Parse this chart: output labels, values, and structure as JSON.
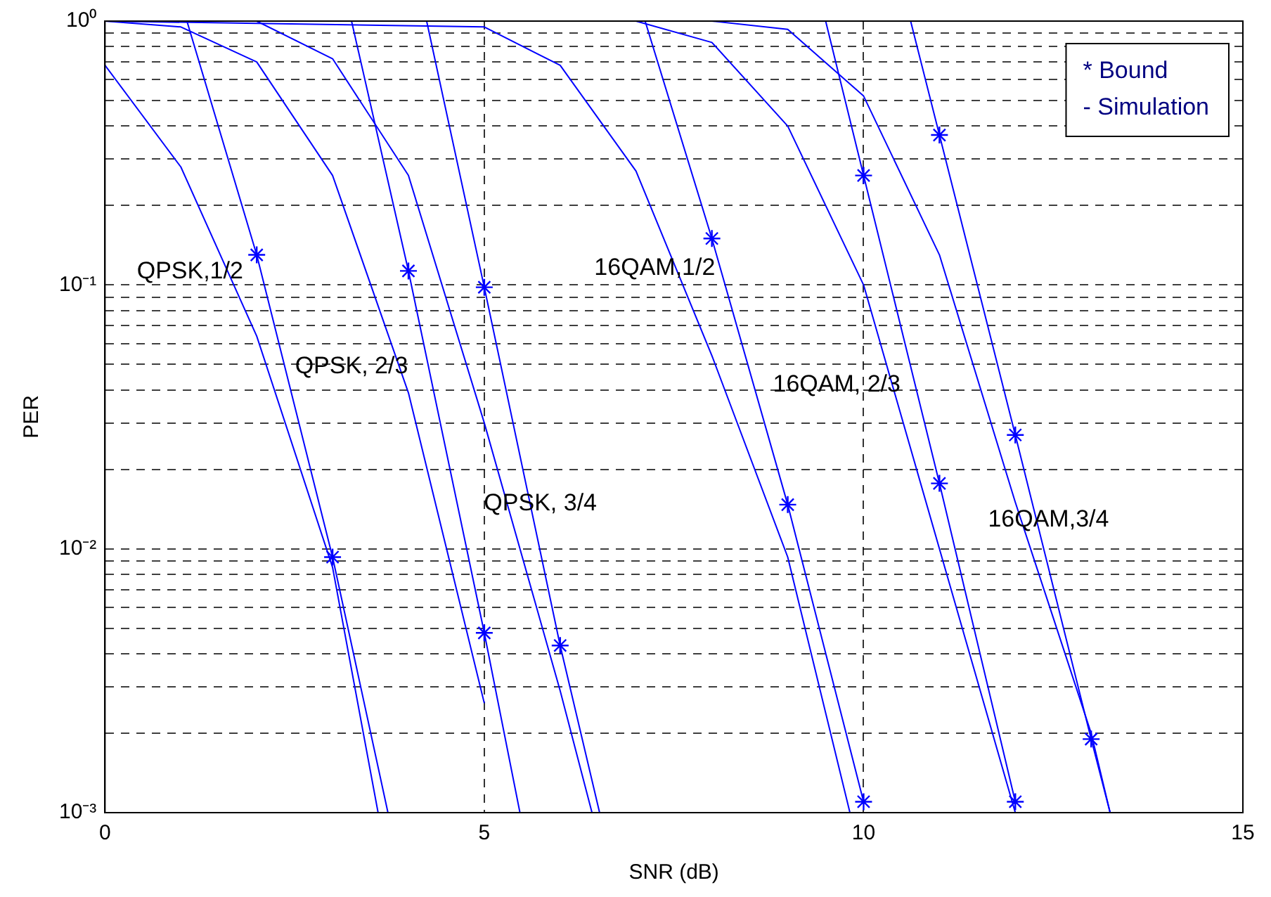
{
  "chart_data": {
    "type": "line",
    "xlabel": "SNR (dB)",
    "ylabel": "PER",
    "log": "y",
    "grid": true,
    "legend": false,
    "xlim": [
      0,
      15
    ],
    "xticks": [
      0,
      5,
      10,
      15
    ],
    "ylim": [
      0.001,
      1
    ],
    "yticks": [
      {
        "value": 0.001,
        "label": "10⁻³"
      },
      {
        "value": 0.002,
        "label": null
      },
      {
        "value": 0.003,
        "label": null
      },
      {
        "value": 0.004,
        "label": null
      },
      {
        "value": 0.005,
        "label": null
      },
      {
        "value": 0.006,
        "label": null
      },
      {
        "value": 0.007,
        "label": null
      },
      {
        "value": 0.008,
        "label": null
      },
      {
        "value": 0.009,
        "label": null
      },
      {
        "value": 0.01,
        "label": "10⁻²"
      },
      {
        "value": 0.02,
        "label": null
      },
      {
        "value": 0.03,
        "label": null
      },
      {
        "value": 0.04,
        "label": null
      },
      {
        "value": 0.05,
        "label": null
      },
      {
        "value": 0.06,
        "label": null
      },
      {
        "value": 0.07,
        "label": null
      },
      {
        "value": 0.08,
        "label": null
      },
      {
        "value": 0.09,
        "label": null
      },
      {
        "value": 0.1,
        "label": "10⁻¹"
      },
      {
        "value": 0.2,
        "label": null
      },
      {
        "value": 0.3,
        "label": null
      },
      {
        "value": 0.4,
        "label": null
      },
      {
        "value": 0.5,
        "label": null
      },
      {
        "value": 0.6,
        "label": null
      },
      {
        "value": 0.7,
        "label": null
      },
      {
        "value": 0.8,
        "label": null
      },
      {
        "value": 0.9,
        "label": null
      },
      {
        "value": 1,
        "label": "10⁰"
      }
    ],
    "series": [
      {
        "marker": "none",
        "color": "#0000ff",
        "x": [
          0,
          1,
          2,
          3,
          3.6
        ],
        "values": [
          0.68,
          0.28,
          0.064,
          0.0085,
          0.001
        ]
      },
      {
        "marker": "none",
        "color": "#0000ff",
        "x": [
          1.08,
          2,
          3,
          3.73
        ],
        "values": [
          1,
          0.13,
          0.0093,
          0.001
        ]
      },
      {
        "marker": "none",
        "color": "#0000ff",
        "x": [
          0,
          1,
          2,
          3,
          4,
          5
        ],
        "values": [
          1,
          0.95,
          0.7,
          0.26,
          0.039,
          0.0026
        ]
      },
      {
        "marker": "none",
        "color": "#0000ff",
        "x": [
          3.25,
          4,
          5,
          5.47
        ],
        "values": [
          1,
          0.113,
          0.0048,
          0.001
        ]
      },
      {
        "marker": "none",
        "color": "#0000ff",
        "x": [
          0,
          1,
          2,
          3,
          4,
          5,
          6,
          6.42
        ],
        "values": [
          1,
          1,
          1,
          0.72,
          0.26,
          0.03,
          0.0029,
          0.001
        ]
      },
      {
        "marker": "none",
        "color": "#0000ff",
        "x": [
          4.24,
          5,
          6,
          6.52
        ],
        "values": [
          1,
          0.098,
          0.0043,
          0.001
        ]
      },
      {
        "marker": "none",
        "color": "#0000ff",
        "x": [
          0,
          5,
          6,
          7,
          8,
          9,
          9.82
        ],
        "values": [
          1,
          0.95,
          0.68,
          0.27,
          0.054,
          0.0093,
          0.001
        ]
      },
      {
        "marker": "none",
        "color": "#0000ff",
        "x": [
          7.12,
          8,
          9,
          10
        ],
        "values": [
          1,
          0.15,
          0.0147,
          0.0011
        ]
      },
      {
        "marker": "none",
        "color": "#0000ff",
        "x": [
          0,
          7,
          8,
          9,
          10,
          11,
          12
        ],
        "values": [
          1,
          1,
          0.83,
          0.4,
          0.1,
          0.01,
          0.001
        ]
      },
      {
        "marker": "none",
        "color": "#0000ff",
        "x": [
          9.5,
          10,
          11,
          12
        ],
        "values": [
          1,
          0.26,
          0.0177,
          0.0011
        ]
      },
      {
        "marker": "none",
        "color": "#0000ff",
        "x": [
          0,
          8,
          9,
          10,
          11,
          12,
          13,
          13.25
        ],
        "values": [
          1,
          1,
          0.93,
          0.52,
          0.13,
          0.015,
          0.002,
          0.001
        ]
      },
      {
        "marker": "none",
        "color": "#0000ff",
        "x": [
          10.62,
          11,
          12,
          13,
          13.25
        ],
        "values": [
          1,
          0.37,
          0.027,
          0.0019,
          0.001
        ]
      },
      {
        "type": "scatter",
        "marker": "cross",
        "color": "#0000ff",
        "x": [
          2,
          3,
          4,
          5,
          5,
          6,
          8,
          9,
          10,
          10,
          11,
          12,
          11,
          12,
          13
        ],
        "values": [
          0.13,
          0.0093,
          0.113,
          0.0048,
          0.098,
          0.0043,
          0.15,
          0.0147,
          0.0011,
          0.26,
          0.0177,
          0.0011,
          0.37,
          0.027,
          0.0019
        ]
      }
    ],
    "annotations": [
      "QPSK,1/2",
      "QPSK, 2/3",
      "QPSK, 3/4",
      "16QAM,1/2",
      "16QAM, 2/3",
      "16QAM,3/4",
      "* Bound",
      "- Simulation"
    ]
  }
}
